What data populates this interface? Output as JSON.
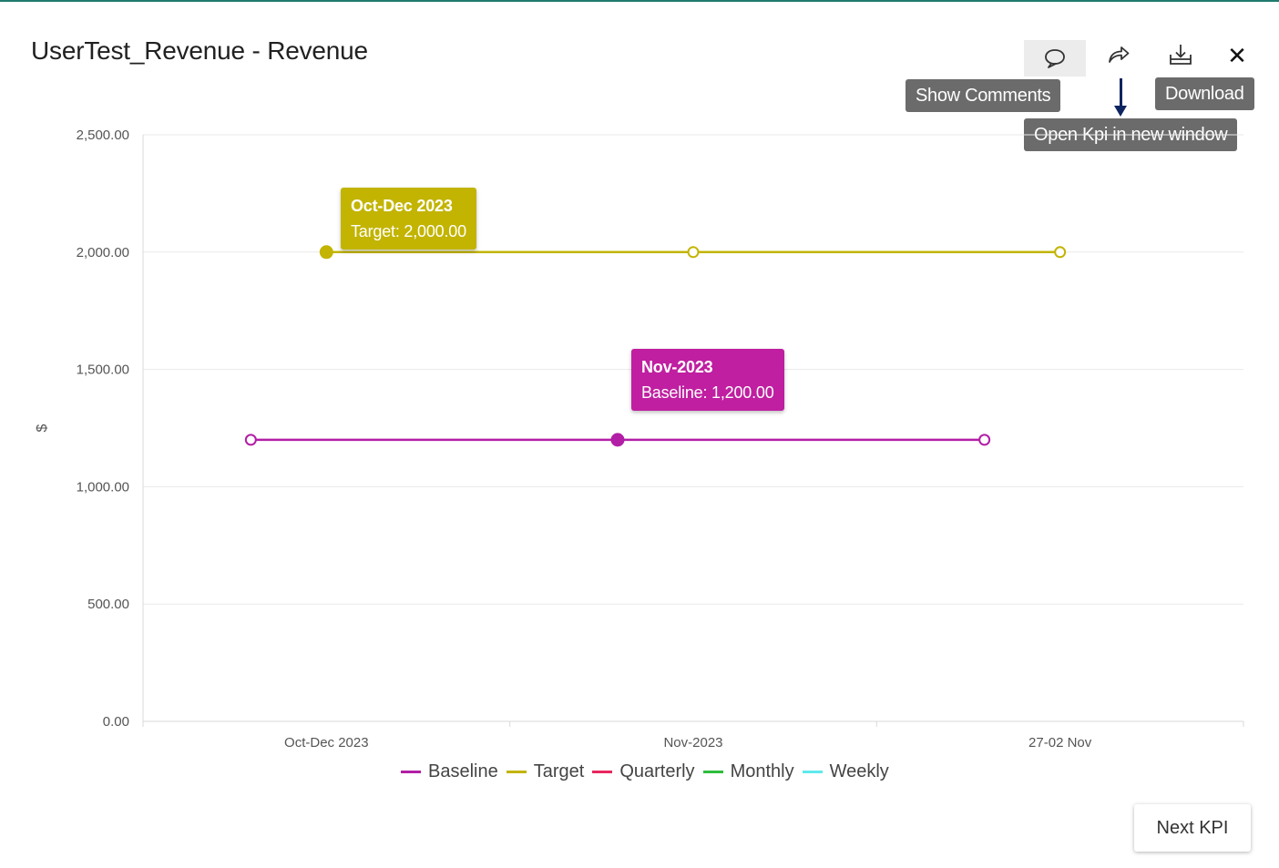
{
  "window": {
    "title": "UserTest_Revenue - Revenue"
  },
  "toolbar": {
    "comments_icon": "speech-bubble-icon",
    "open_icon": "share-arrow-icon",
    "download_icon": "download-tray-icon",
    "close_glyph": "✕"
  },
  "tooltips": {
    "show_comments": "Show Comments",
    "download": "Download",
    "open_new_window": "Open Kpi in new window"
  },
  "chart_data": {
    "type": "line",
    "categories": [
      "Oct-Dec 2023",
      "Nov-2023",
      "27-02 Nov"
    ],
    "ylabel": "$",
    "ylim": [
      0,
      2500
    ],
    "yticks": [
      "0.00",
      "500.00",
      "1,000.00",
      "1,500.00",
      "2,000.00",
      "2,500.00"
    ],
    "grid": true,
    "legend_position": "bottom",
    "series": [
      {
        "name": "Baseline",
        "color": "#b21fa6",
        "values": [
          1200,
          1200,
          1200
        ]
      },
      {
        "name": "Target",
        "color": "#c2b400",
        "values": [
          2000,
          2000,
          2000
        ]
      }
    ],
    "legend": [
      {
        "name": "Baseline",
        "color": "#b21fa6"
      },
      {
        "name": "Target",
        "color": "#c2b400"
      },
      {
        "name": "Quarterly",
        "color": "#e8265d"
      },
      {
        "name": "Monthly",
        "color": "#2ebd3c"
      },
      {
        "name": "Weekly",
        "color": "#5ee9ec"
      }
    ],
    "data_tooltips": [
      {
        "series": "Target",
        "title": "Oct-Dec 2023",
        "label": "Target: 2,000.00",
        "color": "#c2b400"
      },
      {
        "series": "Baseline",
        "title": "Nov-2023",
        "label": "Baseline: 1,200.00",
        "color": "#bf1fa0"
      }
    ]
  },
  "footer": {
    "next_label": "Next KPI"
  }
}
